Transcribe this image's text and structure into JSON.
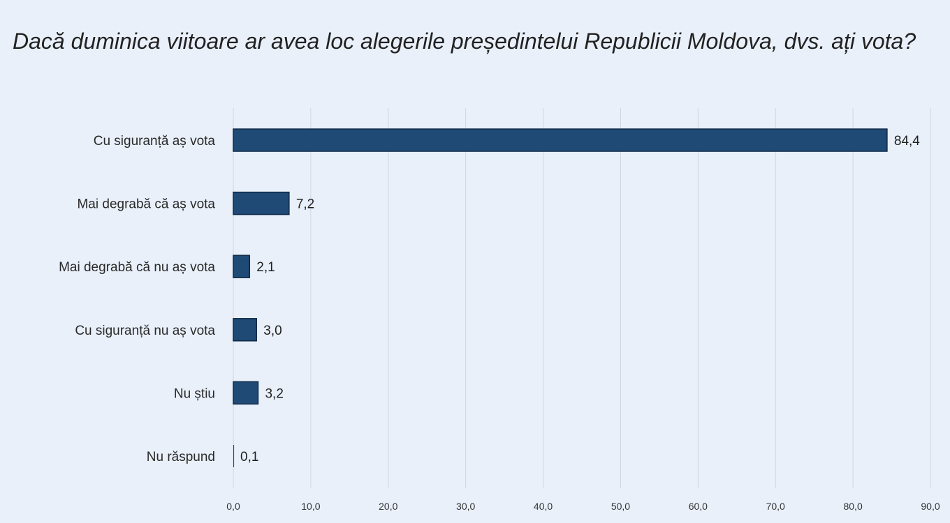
{
  "chart_data": {
    "type": "bar",
    "orientation": "horizontal",
    "title": "Dacă duminica viitoare ar avea loc alegerile președintelui Republicii Moldova, dvs. ați vota?",
    "categories": [
      "Cu siguranță aș vota",
      "Mai degrabă că aș vota",
      "Mai degrabă că nu aș vota",
      "Cu siguranță nu aș vota",
      "Nu știu",
      "Nu răspund"
    ],
    "values": [
      84.4,
      7.2,
      2.1,
      3.0,
      3.2,
      0.1
    ],
    "value_labels": [
      "84,4",
      "7,2",
      "2,1",
      "3,0",
      "3,2",
      "0,1"
    ],
    "xlim": [
      0,
      90
    ],
    "ticks": [
      0,
      10,
      20,
      30,
      40,
      50,
      60,
      70,
      80,
      90
    ],
    "tick_labels": [
      "0,0",
      "10,0",
      "20,0",
      "30,0",
      "40,0",
      "50,0",
      "60,0",
      "70,0",
      "80,0",
      "90,0"
    ],
    "grid": true,
    "bar_color": "#1f4a75",
    "xlabel": "",
    "ylabel": ""
  }
}
